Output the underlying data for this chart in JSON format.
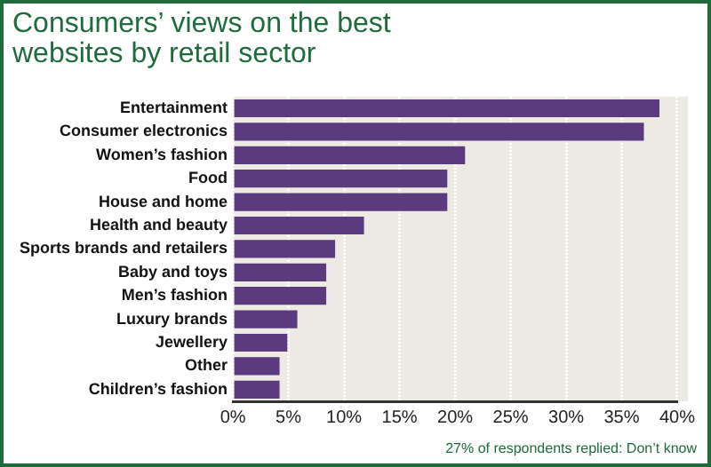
{
  "chart_data": {
    "type": "bar",
    "orientation": "horizontal",
    "title": "Consumers’ views on the best websites by retail sector",
    "categories": [
      "Entertainment",
      "Consumer electronics",
      "Women’s fashion",
      "Food",
      "House and home",
      "Health and beauty",
      "Sports brands and retailers",
      "Baby and toys",
      "Men’s fashion",
      "Luxury brands",
      "Jewellery",
      "Other",
      "Children’s fashion"
    ],
    "values": [
      38.4,
      37.0,
      20.9,
      19.3,
      19.3,
      11.8,
      9.2,
      8.4,
      8.4,
      5.8,
      4.9,
      4.2,
      4.2
    ],
    "color": "#5b3a7e",
    "xlim": [
      0,
      40
    ],
    "xticks": [
      {
        "value": 0,
        "label": "0%"
      },
      {
        "value": 5,
        "label": "5%"
      },
      {
        "value": 10,
        "label": "10%"
      },
      {
        "value": 15,
        "label": "15%"
      },
      {
        "value": 20,
        "label": "20%"
      },
      {
        "value": 25,
        "label": "25%"
      },
      {
        "value": 30,
        "label": "30%"
      },
      {
        "value": 35,
        "label": "35%"
      },
      {
        "value": 40,
        "label": "40%"
      }
    ],
    "grid": "x",
    "legend": false,
    "annotations": [
      "27% of respondents replied: Don’t know"
    ]
  }
}
